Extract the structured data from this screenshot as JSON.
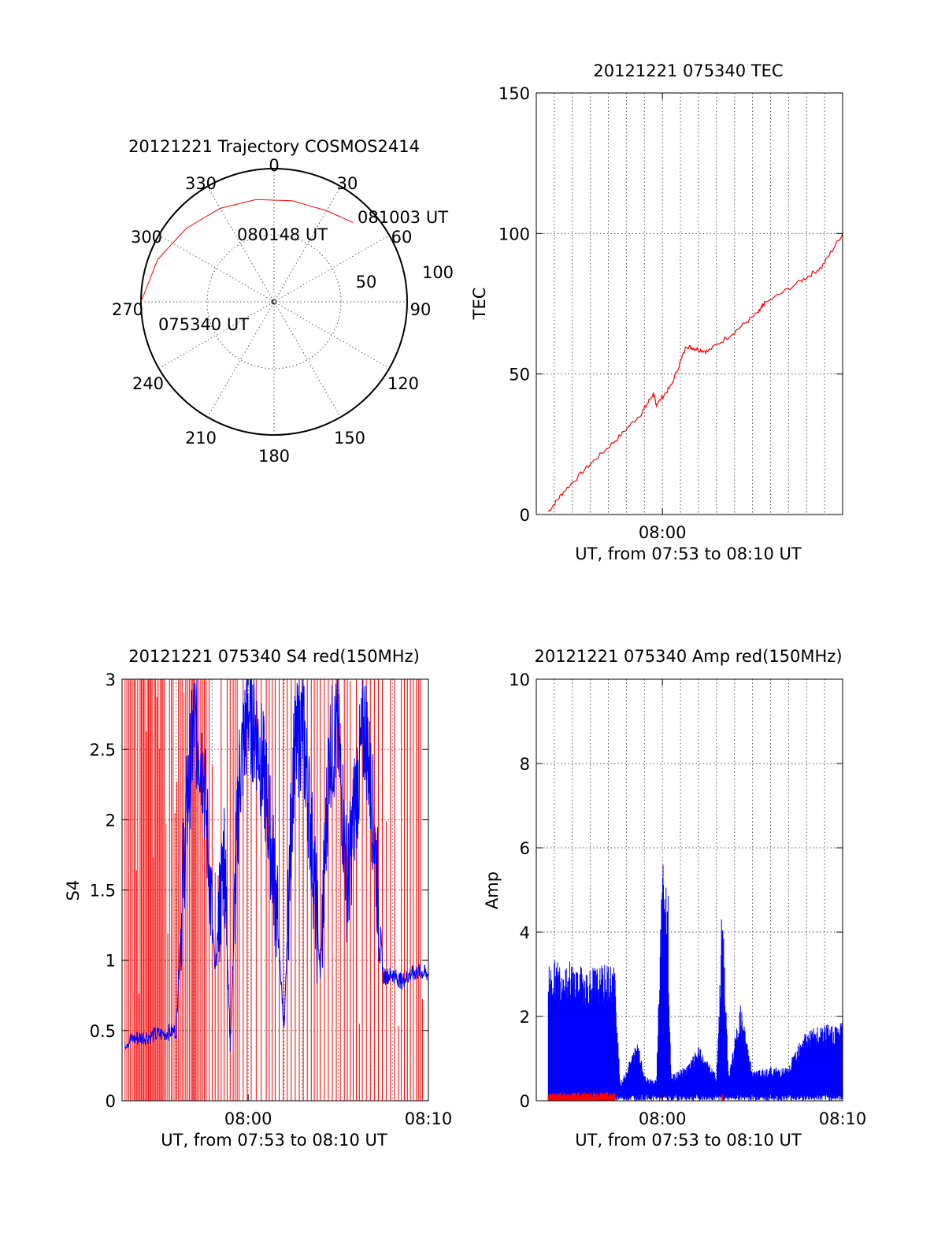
{
  "panels": {
    "polar": {
      "title": "20121221 Trajectory COSMOS2414"
    },
    "tec": {
      "title": "20121221 075340 TEC",
      "ylabel": "TEC",
      "xlabel": "UT, from 07:53 to 08:10 UT"
    },
    "s4": {
      "title": "20121221 075340 S4 red(150MHz)",
      "ylabel": "S4",
      "xlabel": "UT, from 07:53 to 08:10 UT"
    },
    "amp": {
      "title": "20121221 075340 Amp red(150MHz)",
      "ylabel": "Amp",
      "xlabel": "UT, from 07:53 to 08:10 UT"
    }
  },
  "chart_data": [
    {
      "type": "polar",
      "title": "20121221 Trajectory COSMOS2414",
      "azimuth_labels": [
        "0",
        "30",
        "60",
        "90",
        "120",
        "150",
        "180",
        "210",
        "240",
        "270",
        "300",
        "330"
      ],
      "elevation_ring_labels": [
        "50",
        "100"
      ],
      "trajectory": [
        {
          "azimuth": 270,
          "radius": 1.0,
          "time": "075340 UT"
        },
        {
          "azimuth": 290,
          "radius": 0.93
        },
        {
          "azimuth": 310,
          "radius": 0.86
        },
        {
          "azimuth": 330,
          "radius": 0.81
        },
        {
          "azimuth": 350,
          "radius": 0.78,
          "time": "080148 UT"
        },
        {
          "azimuth": 10,
          "radius": 0.77
        },
        {
          "azimuth": 30,
          "radius": 0.79
        },
        {
          "azimuth": 45,
          "radius": 0.84,
          "time": "081003 UT"
        }
      ],
      "annotations": [
        "075340 UT",
        "080148 UT",
        "081003 UT"
      ],
      "colors": {
        "trajectory": "#ff0000"
      }
    },
    {
      "type": "line",
      "title": "20121221 075340 TEC",
      "xlabel": "UT, from 07:53 to 08:10 UT",
      "ylabel": "TEC",
      "x_unit": "minutes of UT",
      "xlim": [
        "07:53",
        "08:10"
      ],
      "ylim": [
        0,
        150
      ],
      "xticks": [
        "08:00"
      ],
      "yticks": [
        0,
        50,
        100,
        150
      ],
      "grid": true,
      "series": [
        {
          "color": "#ff0000",
          "x": [
            "07:53:40",
            "07:54:30",
            "07:56:00",
            "07:57:30",
            "07:58:50",
            "07:59:30",
            "07:59:40",
            "08:00:30",
            "08:01:20",
            "08:01:50",
            "08:02:30",
            "08:04:00",
            "08:05:20",
            "08:05:40",
            "08:07:40",
            "08:08:50",
            "08:10:00"
          ],
          "values": [
            1,
            8,
            18,
            27,
            36,
            43,
            39,
            46,
            60,
            59,
            58,
            65,
            72,
            75,
            83,
            88,
            100
          ]
        }
      ]
    },
    {
      "type": "line",
      "title": "20121221 075340 S4 red(150MHz)",
      "xlabel": "UT, from 07:53 to 08:10 UT",
      "ylabel": "S4",
      "xlim": [
        "07:53",
        "08:10"
      ],
      "ylim": [
        0,
        3
      ],
      "xticks": [
        "08:00",
        "08:10"
      ],
      "yticks": [
        "0",
        "0.5",
        "1",
        "1.5",
        "2",
        "2.5",
        "3"
      ],
      "grid": true,
      "series": [
        {
          "color": "#ff0000",
          "description_of_marks": "dense vertical red spikes 0–3",
          "spike_times": [
            "07:53:10",
            "07:53:40",
            "07:54:00",
            "07:54:20",
            "07:54:40",
            "07:55:00",
            "07:55:20",
            "07:55:50",
            "07:56:20",
            "07:56:50",
            "07:57:10",
            "07:57:40",
            "07:58:10",
            "07:58:40",
            "07:59:10",
            "07:59:30",
            "08:00:10",
            "08:01:00",
            "08:01:30",
            "08:02:10",
            "08:02:50",
            "08:03:30",
            "08:04:00",
            "08:04:40",
            "08:05:20",
            "08:05:50",
            "08:06:20",
            "08:07:00",
            "08:07:40",
            "08:08:20",
            "08:08:50",
            "08:09:20",
            "08:09:40"
          ]
        },
        {
          "color": "#0000ff",
          "x": [
            "07:53:10",
            "07:54:00",
            "07:55:00",
            "07:56:00",
            "07:56:30",
            "07:57:00",
            "07:57:30",
            "07:58:10",
            "07:58:40",
            "07:59:00",
            "07:59:30",
            "08:00:00",
            "08:00:30",
            "08:01:00",
            "08:01:30",
            "08:02:00",
            "08:02:30",
            "08:03:00",
            "08:03:30",
            "08:04:00",
            "08:04:30",
            "08:05:00",
            "08:05:30",
            "08:06:00",
            "08:06:30",
            "08:07:00",
            "08:07:30",
            "08:08:00",
            "08:08:30",
            "08:09:00",
            "08:09:30",
            "08:10:00"
          ],
          "values": [
            0.42,
            0.45,
            0.47,
            0.5,
            1.9,
            2.7,
            2.4,
            0.9,
            1.8,
            0.4,
            2.3,
            2.8,
            2.6,
            2.2,
            1.5,
            0.5,
            2.4,
            2.7,
            1.9,
            0.9,
            2.5,
            2.6,
            1.5,
            2.2,
            2.7,
            1.9,
            0.88,
            0.9,
            0.85,
            0.9,
            0.92,
            0.9
          ]
        }
      ]
    },
    {
      "type": "line",
      "title": "20121221 075340 Amp red(150MHz)",
      "xlabel": "UT, from 07:53 to 08:10 UT",
      "ylabel": "Amp",
      "xlim": [
        "07:53",
        "08:10"
      ],
      "ylim": [
        0,
        10
      ],
      "xticks": [
        "08:00",
        "08:10"
      ],
      "yticks": [
        0,
        2,
        4,
        6,
        8,
        10
      ],
      "grid": true,
      "series": [
        {
          "color": "#0000ff",
          "x": [
            "07:53:40",
            "07:54:30",
            "07:55:30",
            "07:56:30",
            "07:57:20",
            "07:57:40",
            "07:58:40",
            "07:59:00",
            "07:59:40",
            "08:00:00",
            "08:00:10",
            "08:00:30",
            "08:01:30",
            "08:02:00",
            "08:03:00",
            "08:03:20",
            "08:03:40",
            "08:04:20",
            "08:05:00",
            "08:06:00",
            "08:07:00",
            "08:07:40",
            "08:08:00",
            "08:09:00",
            "08:10:00"
          ],
          "values": [
            3.3,
            3.4,
            3.2,
            3.2,
            3.3,
            0.4,
            1.5,
            0.6,
            0.5,
            5.9,
            4.7,
            0.6,
            0.9,
            1.3,
            0.6,
            4.5,
            0.6,
            2.3,
            0.7,
            0.8,
            0.8,
            1.6,
            1.7,
            1.8,
            1.9
          ]
        },
        {
          "color": "#ff0000",
          "x": [
            "07:53:40",
            "07:55:00",
            "07:57:20",
            "07:57:40",
            "08:00:00",
            "08:03:20",
            "08:10:00"
          ],
          "values": [
            0.15,
            0.15,
            0.15,
            0.0,
            0.1,
            0.15,
            0.0
          ]
        }
      ]
    }
  ]
}
